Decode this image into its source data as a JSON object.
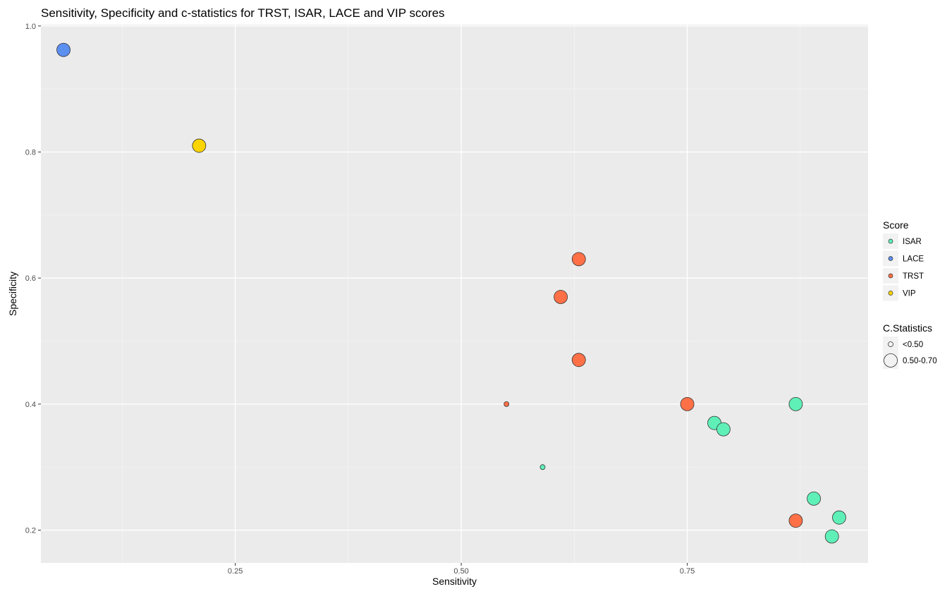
{
  "chart_data": {
    "type": "scatter",
    "title": "Sensitivity, Specificity and c-statistics for TRST, ISAR, LACE and VIP scores",
    "xlabel": "Sensitivity",
    "ylabel": "Specificity",
    "xlim": [
      0.035,
      0.95
    ],
    "ylim": [
      0.148,
      1.002
    ],
    "x_ticks": [
      0.25,
      0.5,
      0.75
    ],
    "x_tick_labels": [
      "0.25",
      "0.50",
      "0.75"
    ],
    "y_ticks": [
      0.2,
      0.4,
      0.6,
      0.8,
      1.0
    ],
    "y_tick_labels": [
      "0.2",
      "0.4",
      "0.6",
      "0.8",
      "1.0"
    ],
    "grid": true,
    "legend_position": "right",
    "color_legend": {
      "title": "Score",
      "entries": [
        {
          "name": "ISAR",
          "color": "#5ff0b8"
        },
        {
          "name": "LACE",
          "color": "#5b8ff0"
        },
        {
          "name": "TRST",
          "color": "#ff7047"
        },
        {
          "name": "VIP",
          "color": "#fcd400"
        }
      ]
    },
    "size_legend": {
      "title": "C.Statistics",
      "entries": [
        {
          "name": "<0.50",
          "size": "small"
        },
        {
          "name": "0.50-0.70",
          "size": "large"
        }
      ]
    },
    "points": [
      {
        "score": "LACE",
        "x": 0.06,
        "y": 0.962,
        "c": "0.50-0.70"
      },
      {
        "score": "VIP",
        "x": 0.21,
        "y": 0.81,
        "c": "0.50-0.70"
      },
      {
        "score": "TRST",
        "x": 0.63,
        "y": 0.63,
        "c": "0.50-0.70"
      },
      {
        "score": "TRST",
        "x": 0.61,
        "y": 0.57,
        "c": "0.50-0.70"
      },
      {
        "score": "TRST",
        "x": 0.63,
        "y": 0.47,
        "c": "0.50-0.70"
      },
      {
        "score": "TRST",
        "x": 0.55,
        "y": 0.4,
        "c": "<0.50"
      },
      {
        "score": "TRST",
        "x": 0.75,
        "y": 0.4,
        "c": "0.50-0.70"
      },
      {
        "score": "TRST",
        "x": 0.87,
        "y": 0.215,
        "c": "0.50-0.70"
      },
      {
        "score": "ISAR",
        "x": 0.59,
        "y": 0.3,
        "c": "<0.50"
      },
      {
        "score": "ISAR",
        "x": 0.78,
        "y": 0.37,
        "c": "0.50-0.70"
      },
      {
        "score": "ISAR",
        "x": 0.79,
        "y": 0.36,
        "c": "0.50-0.70"
      },
      {
        "score": "ISAR",
        "x": 0.87,
        "y": 0.4,
        "c": "0.50-0.70"
      },
      {
        "score": "ISAR",
        "x": 0.89,
        "y": 0.25,
        "c": "0.50-0.70"
      },
      {
        "score": "ISAR",
        "x": 0.91,
        "y": 0.19,
        "c": "0.50-0.70"
      },
      {
        "score": "ISAR",
        "x": 0.918,
        "y": 0.22,
        "c": "0.50-0.70"
      }
    ]
  }
}
